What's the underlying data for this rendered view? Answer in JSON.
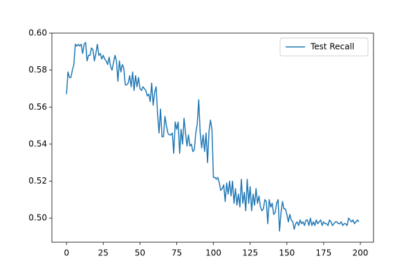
{
  "chart_data": {
    "type": "line",
    "x": [
      0,
      1,
      2,
      3,
      4,
      5,
      6,
      7,
      8,
      9,
      10,
      11,
      12,
      13,
      14,
      15,
      16,
      17,
      18,
      19,
      20,
      21,
      22,
      23,
      24,
      25,
      26,
      27,
      28,
      29,
      30,
      31,
      32,
      33,
      34,
      35,
      36,
      37,
      38,
      39,
      40,
      41,
      42,
      43,
      44,
      45,
      46,
      47,
      48,
      49,
      50,
      51,
      52,
      53,
      54,
      55,
      56,
      57,
      58,
      59,
      60,
      61,
      62,
      63,
      64,
      65,
      66,
      67,
      68,
      69,
      70,
      71,
      72,
      73,
      74,
      75,
      76,
      77,
      78,
      79,
      80,
      81,
      82,
      83,
      84,
      85,
      86,
      87,
      88,
      89,
      90,
      91,
      92,
      93,
      94,
      95,
      96,
      97,
      98,
      99,
      100,
      101,
      102,
      103,
      104,
      105,
      106,
      107,
      108,
      109,
      110,
      111,
      112,
      113,
      114,
      115,
      116,
      117,
      118,
      119,
      120,
      121,
      122,
      123,
      124,
      125,
      126,
      127,
      128,
      129,
      130,
      131,
      132,
      133,
      134,
      135,
      136,
      137,
      138,
      139,
      140,
      141,
      142,
      143,
      144,
      145,
      146,
      147,
      148,
      149,
      150,
      151,
      152,
      153,
      154,
      155,
      156,
      157,
      158,
      159,
      160,
      161,
      162,
      163,
      164,
      165,
      166,
      167,
      168,
      169,
      170,
      171,
      172,
      173,
      174,
      175,
      176,
      177,
      178,
      179,
      180,
      181,
      182,
      183,
      184,
      185,
      186,
      187,
      188,
      189,
      190,
      191,
      192,
      193,
      194,
      195,
      196,
      197,
      198,
      199
    ],
    "series": [
      {
        "name": "Test Recall",
        "color": "#1f77b4",
        "values": [
          0.567,
          0.579,
          0.576,
          0.576,
          0.58,
          0.583,
          0.594,
          0.593,
          0.594,
          0.593,
          0.594,
          0.589,
          0.594,
          0.595,
          0.585,
          0.588,
          0.588,
          0.592,
          0.591,
          0.585,
          0.589,
          0.594,
          0.588,
          0.589,
          0.586,
          0.588,
          0.586,
          0.585,
          0.583,
          0.587,
          0.582,
          0.58,
          0.584,
          0.588,
          0.585,
          0.574,
          0.585,
          0.579,
          0.583,
          0.581,
          0.572,
          0.572,
          0.573,
          0.577,
          0.571,
          0.579,
          0.569,
          0.577,
          0.571,
          0.576,
          0.57,
          0.569,
          0.571,
          0.57,
          0.569,
          0.566,
          0.567,
          0.563,
          0.573,
          0.561,
          0.568,
          0.571,
          0.556,
          0.546,
          0.559,
          0.544,
          0.544,
          0.555,
          0.55,
          0.546,
          0.545,
          0.545,
          0.546,
          0.535,
          0.552,
          0.548,
          0.552,
          0.535,
          0.548,
          0.54,
          0.554,
          0.546,
          0.539,
          0.545,
          0.539,
          0.54,
          0.536,
          0.537,
          0.546,
          0.551,
          0.564,
          0.546,
          0.538,
          0.545,
          0.536,
          0.546,
          0.53,
          0.547,
          0.553,
          0.548,
          0.522,
          0.522,
          0.521,
          0.522,
          0.519,
          0.515,
          0.516,
          0.518,
          0.509,
          0.519,
          0.513,
          0.52,
          0.512,
          0.52,
          0.508,
          0.516,
          0.507,
          0.513,
          0.506,
          0.521,
          0.508,
          0.514,
          0.504,
          0.521,
          0.508,
          0.517,
          0.504,
          0.513,
          0.507,
          0.516,
          0.508,
          0.512,
          0.506,
          0.504,
          0.505,
          0.51,
          0.509,
          0.497,
          0.51,
          0.506,
          0.508,
          0.502,
          0.503,
          0.508,
          0.51,
          0.493,
          0.503,
          0.509,
          0.505,
          0.505,
          0.502,
          0.498,
          0.502,
          0.499,
          0.498,
          0.494,
          0.497,
          0.498,
          0.496,
          0.499,
          0.497,
          0.498,
          0.496,
          0.499,
          0.499,
          0.496,
          0.5,
          0.496,
          0.498,
          0.496,
          0.499,
          0.497,
          0.498,
          0.499,
          0.496,
          0.498,
          0.497,
          0.497,
          0.496,
          0.499,
          0.498,
          0.496,
          0.497,
          0.498,
          0.498,
          0.497,
          0.497,
          0.498,
          0.496,
          0.497,
          0.497,
          0.496,
          0.5,
          0.499,
          0.498,
          0.499,
          0.497,
          0.498,
          0.499,
          0.498
        ]
      }
    ],
    "xlim": [
      -9.95,
      208.95
    ],
    "ylim": [
      0.487,
      0.6
    ],
    "xticks": [
      0,
      25,
      50,
      75,
      100,
      125,
      150,
      175,
      200
    ],
    "yticks": [
      {
        "value": 0.5,
        "label": "0.50"
      },
      0.52,
      0.54,
      0.56,
      0.58,
      {
        "value": 0.6,
        "label": "0.60"
      }
    ],
    "legend": "upper right"
  }
}
